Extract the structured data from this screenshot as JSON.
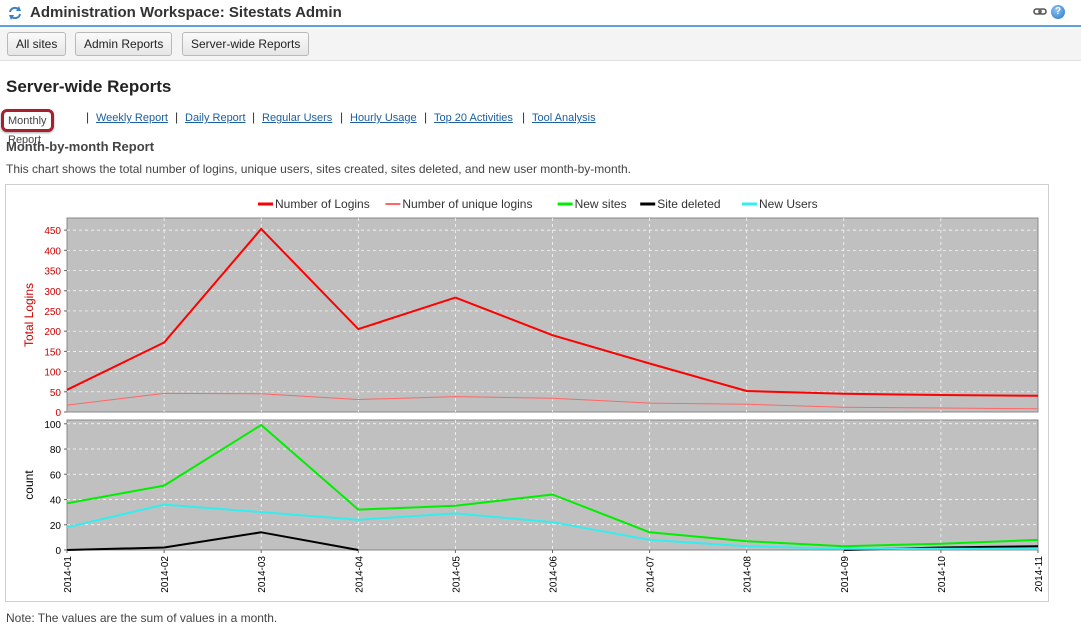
{
  "window": {
    "title": "Administration Workspace: Sitestats Admin"
  },
  "toolbar": {
    "buttons": [
      "All sites",
      "Admin Reports",
      "Server-wide Reports"
    ]
  },
  "page": {
    "title": "Server-wide Reports",
    "section_title": "Month-by-month Report",
    "description": "This chart shows the total number of logins, unique users, sites created, sites deleted, and new user month-by-month.",
    "note": "Note: The values are the sum of values in a month."
  },
  "report_nav": {
    "active": "Monthly Report",
    "links": [
      "Weekly Report",
      "Daily Report",
      "Regular Users",
      "Hourly Usage",
      "Top 20 Activities",
      "Tool Analysis"
    ],
    "separator": "|"
  },
  "icons": {
    "refresh": "refresh-icon",
    "link": "link-icon",
    "help": "help-icon"
  },
  "colors": {
    "accent": "#5ba3d9",
    "active_outline": "#a6202d",
    "plot_bg": "#c0c0c0",
    "logins": "#ff0000",
    "unique_logins": "#ff6666",
    "new_sites": "#00ee00",
    "site_deleted": "#000000",
    "new_users": "#33eeee",
    "upper_axis_text": "#cc0000"
  },
  "chart_data": {
    "type": "line",
    "x": [
      "2014-01",
      "2014-02",
      "2014-03",
      "2014-04",
      "2014-05",
      "2014-06",
      "2014-07",
      "2014-08",
      "2014-09",
      "2014-10",
      "2014-11"
    ],
    "legend": [
      "Number of Logins",
      "Number of unique logins",
      "New sites",
      "Site deleted",
      "New Users"
    ],
    "legend_position": "top-center",
    "grid": true,
    "panels": [
      {
        "ylabel": "Total Logins",
        "ylim": [
          0,
          480
        ],
        "yticks": [
          0,
          50,
          100,
          150,
          200,
          250,
          300,
          350,
          400,
          450
        ],
        "series": [
          {
            "name": "Number of Logins",
            "color": "#ff0000",
            "width": 2,
            "values": [
              55,
              172,
              453,
              205,
              283,
              190,
              120,
              52,
              45,
              42,
              40
            ]
          },
          {
            "name": "Number of unique logins",
            "color": "#ff6666",
            "width": 1,
            "values": [
              17,
              46,
              45,
              31,
              38,
              34,
              22,
              19,
              12,
              10,
              8
            ]
          }
        ]
      },
      {
        "ylabel": "count",
        "ylim": [
          0,
          103
        ],
        "yticks": [
          0,
          20,
          40,
          60,
          80,
          100
        ],
        "series": [
          {
            "name": "New sites",
            "color": "#00ee00",
            "width": 2,
            "values": [
              37,
              51,
              99,
              32,
              35,
              44,
              14,
              7,
              3,
              5,
              8
            ]
          },
          {
            "name": "Site deleted",
            "color": "#000000",
            "width": 2,
            "values": [
              0,
              2,
              14,
              0,
              null,
              null,
              null,
              null,
              0,
              2,
              3
            ]
          },
          {
            "name": "New Users",
            "color": "#33eeee",
            "width": 2,
            "values": [
              18,
              36,
              30,
              24,
              29,
              22,
              8,
              3,
              1,
              1,
              1
            ]
          }
        ]
      }
    ]
  }
}
